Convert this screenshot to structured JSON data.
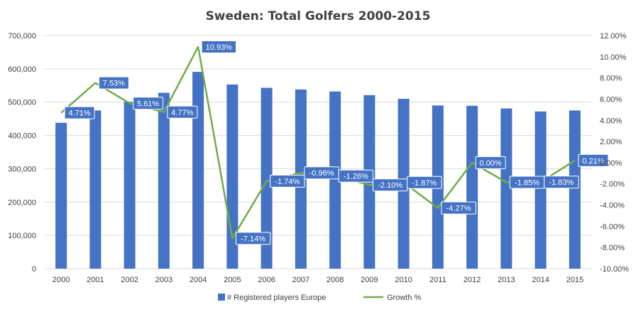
{
  "chart_data": {
    "type": "bar",
    "title": "Sweden: Total Golfers 2000-2015",
    "categories": [
      "2000",
      "2001",
      "2002",
      "2003",
      "2004",
      "2005",
      "2006",
      "2007",
      "2008",
      "2009",
      "2010",
      "2011",
      "2012",
      "2013",
      "2014",
      "2015"
    ],
    "series": [
      {
        "name": "# Registered players Europe",
        "type": "bar",
        "axis": "left",
        "color": "#4472C4",
        "values": [
          438000,
          475000,
          501000,
          528000,
          591000,
          553000,
          543000,
          538000,
          532000,
          521000,
          510000,
          490000,
          489000,
          481000,
          472000,
          475000
        ]
      },
      {
        "name": "Growth %",
        "type": "line",
        "axis": "right",
        "color": "#70AD47",
        "values": [
          4.71,
          7.53,
          5.61,
          4.77,
          10.93,
          -7.14,
          -1.74,
          -0.96,
          -1.26,
          -2.1,
          -1.87,
          -4.27,
          0.0,
          -1.85,
          -1.83,
          0.21
        ],
        "labels": [
          "4.71%",
          "7.53%",
          "5.61%",
          "4.77%",
          "10.93%",
          "-7.14%",
          "-1.74%",
          "-0.96%",
          "-1.26%",
          "-2.10%",
          "-1.87%",
          "-4.27%",
          "0.00%",
          "-1.85%",
          "-1.83%",
          "0.21%"
        ]
      }
    ],
    "y_left": {
      "ylim": [
        0,
        700000
      ],
      "ticks": [
        0,
        100000,
        200000,
        300000,
        400000,
        500000,
        600000,
        700000
      ],
      "tick_labels": [
        "0",
        "100,000",
        "200,000",
        "300,000",
        "400,000",
        "500,000",
        "600,000",
        "700,000"
      ]
    },
    "y_right": {
      "ylim": [
        -10,
        12
      ],
      "ticks": [
        -10,
        -8,
        -6,
        -4,
        -2,
        0,
        2,
        4,
        6,
        8,
        10,
        12
      ],
      "tick_labels": [
        "-10.00%",
        "-8.00%",
        "-6.00%",
        "-4.00%",
        "-2.00%",
        "0.00%",
        "2.00%",
        "4.00%",
        "6.00%",
        "8.00%",
        "10.00%",
        "12.00%"
      ]
    },
    "grid": true,
    "legend": "bottom",
    "label_box_color": "#4472C4",
    "grid_color": "#D9D9D9"
  }
}
